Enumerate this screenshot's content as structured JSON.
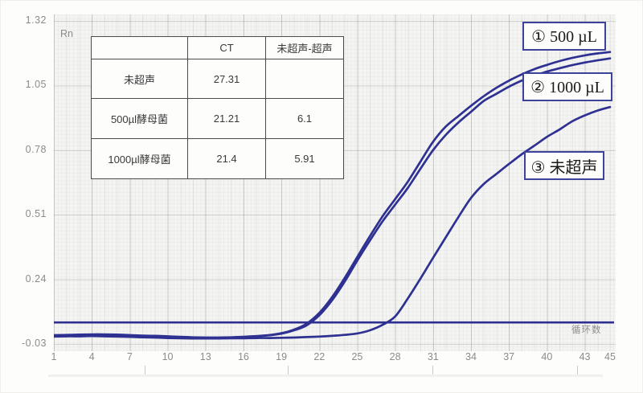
{
  "figure": {
    "background": "#fdfdfc",
    "plot_bg": "#f4f4f2"
  },
  "axes": {
    "y_title": "Rn",
    "x_title": "循环数",
    "y_ticks": [
      {
        "label": "1.32",
        "value": 1.32
      },
      {
        "label": "1.05",
        "value": 1.05
      },
      {
        "label": "0.78",
        "value": 0.78
      },
      {
        "label": "0.51",
        "value": 0.51
      },
      {
        "label": "0.24",
        "value": 0.24
      },
      {
        "label": "-0.03",
        "value": -0.03
      }
    ],
    "x_ticks": [
      1,
      4,
      7,
      10,
      13,
      16,
      19,
      22,
      25,
      28,
      31,
      34,
      37,
      40,
      43,
      45
    ]
  },
  "table": {
    "headers": [
      "",
      "CT",
      "未超声-超声"
    ],
    "rows": [
      {
        "name": "未超声",
        "ct": "27.31",
        "diff": ""
      },
      {
        "name": "500µl酵母菌",
        "ct": "21.21",
        "diff": "6.1"
      },
      {
        "name": "1000µl酵母菌",
        "ct": "21.4",
        "diff": "5.91"
      }
    ]
  },
  "annotations": [
    {
      "label": "① 500 µL"
    },
    {
      "label": "② 1000 µL"
    },
    {
      "label": "③ 未超声"
    }
  ],
  "chart_data": {
    "type": "line",
    "title": "",
    "xlabel": "循环数",
    "ylabel": "Rn",
    "xlim": [
      1,
      45
    ],
    "ylim": [
      -0.03,
      1.32
    ],
    "grid": true,
    "threshold_rn": 0.06,
    "curve_color": "#2e3192",
    "x": [
      1,
      2,
      3,
      4,
      5,
      6,
      7,
      8,
      9,
      10,
      11,
      12,
      13,
      14,
      15,
      16,
      17,
      18,
      19,
      20,
      21,
      22,
      23,
      24,
      25,
      26,
      27,
      28,
      29,
      30,
      31,
      32,
      33,
      34,
      35,
      36,
      37,
      38,
      39,
      40,
      41,
      42,
      43,
      44,
      45
    ],
    "series": [
      {
        "key": "curve-500ul",
        "name": "500 µL",
        "ct": 21.21,
        "values": [
          0.007,
          0.008,
          0.009,
          0.01,
          0.01,
          0.009,
          0.007,
          0.005,
          0.004,
          0.002,
          0.0,
          -0.002,
          -0.003,
          -0.003,
          -0.002,
          0.0,
          0.003,
          0.007,
          0.015,
          0.03,
          0.055,
          0.1,
          0.165,
          0.245,
          0.333,
          0.42,
          0.503,
          0.575,
          0.648,
          0.732,
          0.815,
          0.878,
          0.922,
          0.965,
          1.005,
          1.04,
          1.07,
          1.096,
          1.118,
          1.136,
          1.152,
          1.165,
          1.176,
          1.184,
          1.19
        ]
      },
      {
        "key": "curve-1000ul",
        "name": "1000 µL",
        "ct": 21.4,
        "values": [
          0.004,
          0.005,
          0.006,
          0.007,
          0.007,
          0.006,
          0.005,
          0.003,
          0.002,
          0.0,
          -0.001,
          -0.003,
          -0.004,
          -0.004,
          -0.003,
          -0.001,
          0.002,
          0.006,
          0.013,
          0.027,
          0.048,
          0.09,
          0.152,
          0.23,
          0.318,
          0.402,
          0.482,
          0.552,
          0.622,
          0.702,
          0.78,
          0.843,
          0.895,
          0.94,
          0.985,
          1.015,
          1.045,
          1.07,
          1.09,
          1.108,
          1.122,
          1.135,
          1.146,
          1.155,
          1.163
        ]
      },
      {
        "key": "curve-untreated",
        "name": "未超声",
        "ct": 27.31,
        "values": [
          0.001,
          0.002,
          0.002,
          0.003,
          0.002,
          0.001,
          0.0,
          -0.002,
          -0.003,
          -0.005,
          -0.006,
          -0.007,
          -0.007,
          -0.007,
          -0.006,
          -0.006,
          -0.005,
          -0.005,
          -0.004,
          -0.003,
          -0.001,
          0.001,
          0.004,
          0.008,
          0.014,
          0.027,
          0.05,
          0.085,
          0.16,
          0.243,
          0.33,
          0.415,
          0.5,
          0.58,
          0.638,
          0.68,
          0.722,
          0.762,
          0.798,
          0.835,
          0.866,
          0.9,
          0.925,
          0.945,
          0.96
        ]
      }
    ],
    "legend_position": "right-annotated"
  }
}
